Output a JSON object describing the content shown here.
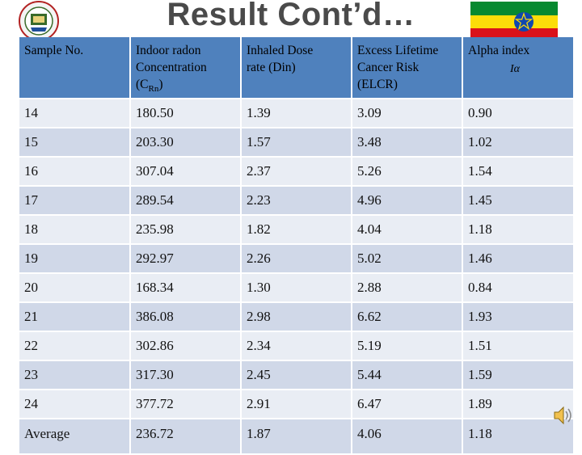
{
  "slide": {
    "title": "Result Cont’d…"
  },
  "icons": {
    "logo": "university-seal-icon",
    "flag": "ethiopian-flag-icon",
    "audio": "speaker-icon"
  },
  "colors": {
    "header_bg": "#4f81bd",
    "row_dark": "#d0d8e8",
    "row_light": "#e9edf4",
    "flag_green": "#078930",
    "flag_yellow": "#fcdd09",
    "flag_red": "#da121a",
    "flag_blue": "#0f47af"
  },
  "table": {
    "headers": {
      "sample": "Sample  No.",
      "radon_line1": "Indoor radon",
      "radon_line2": "Concentration",
      "radon_line3_pre": "(C",
      "radon_line3_sub": "Rn",
      "radon_line3_post": ")",
      "dose_line1": "Inhaled Dose",
      "dose_line2": "rate (Din)",
      "elcr_line1": "Excess Lifetime",
      "elcr_line2": "Cancer Risk",
      "elcr_line3": "(ELCR)",
      "alpha_line1": "Alpha index",
      "alpha_symbol": "Iα"
    },
    "rows": [
      [
        "14",
        "180.50",
        "1.39",
        "3.09",
        "0.90"
      ],
      [
        "15",
        "203.30",
        "1.57",
        "3.48",
        "1.02"
      ],
      [
        "16",
        "307.04",
        "2.37",
        "5.26",
        "1.54"
      ],
      [
        "17",
        "289.54",
        "2.23",
        "4.96",
        "1.45"
      ],
      [
        "18",
        "235.98",
        "1.82",
        "4.04",
        "1.18"
      ],
      [
        "19",
        "292.97",
        "2.26",
        "5.02",
        "1.46"
      ],
      [
        "20",
        "168.34",
        "1.30",
        "2.88",
        "0.84"
      ],
      [
        "21",
        "386.08",
        "2.98",
        "6.62",
        "1.93"
      ],
      [
        "22",
        "302.86",
        "2.34",
        "5.19",
        "1.51"
      ],
      [
        "23",
        "317.30",
        "2.45",
        "5.44",
        "1.59"
      ],
      [
        "24",
        "377.72",
        "2.91",
        "6.47",
        "1.89"
      ]
    ],
    "average": [
      "Average",
      "236.72",
      "1.87",
      "4.06",
      "1.18"
    ]
  }
}
